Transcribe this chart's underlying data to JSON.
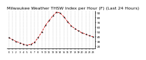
{
  "title": "Milwaukee Weather THSW Index per Hour (F) (Last 24 Hours)",
  "hours": [
    0,
    1,
    2,
    3,
    4,
    5,
    6,
    7,
    8,
    9,
    10,
    11,
    12,
    13,
    14,
    15,
    16,
    17,
    18,
    19,
    20,
    21,
    22,
    23
  ],
  "values": [
    38,
    34,
    30,
    27,
    24,
    22,
    24,
    28,
    38,
    50,
    64,
    74,
    84,
    92,
    90,
    82,
    72,
    63,
    57,
    52,
    48,
    45,
    42,
    40
  ],
  "line_color": "#cc0000",
  "marker_color": "#000000",
  "bg_color": "#ffffff",
  "grid_color": "#bbbbbb",
  "text_color": "#000000",
  "ylim_min": 15,
  "ylim_max": 95,
  "ytick_values": [
    20,
    30,
    40,
    50,
    60,
    70,
    80,
    90
  ],
  "title_fontsize": 4.5,
  "tick_fontsize": 3.0,
  "xtick_fontsize": 2.5
}
